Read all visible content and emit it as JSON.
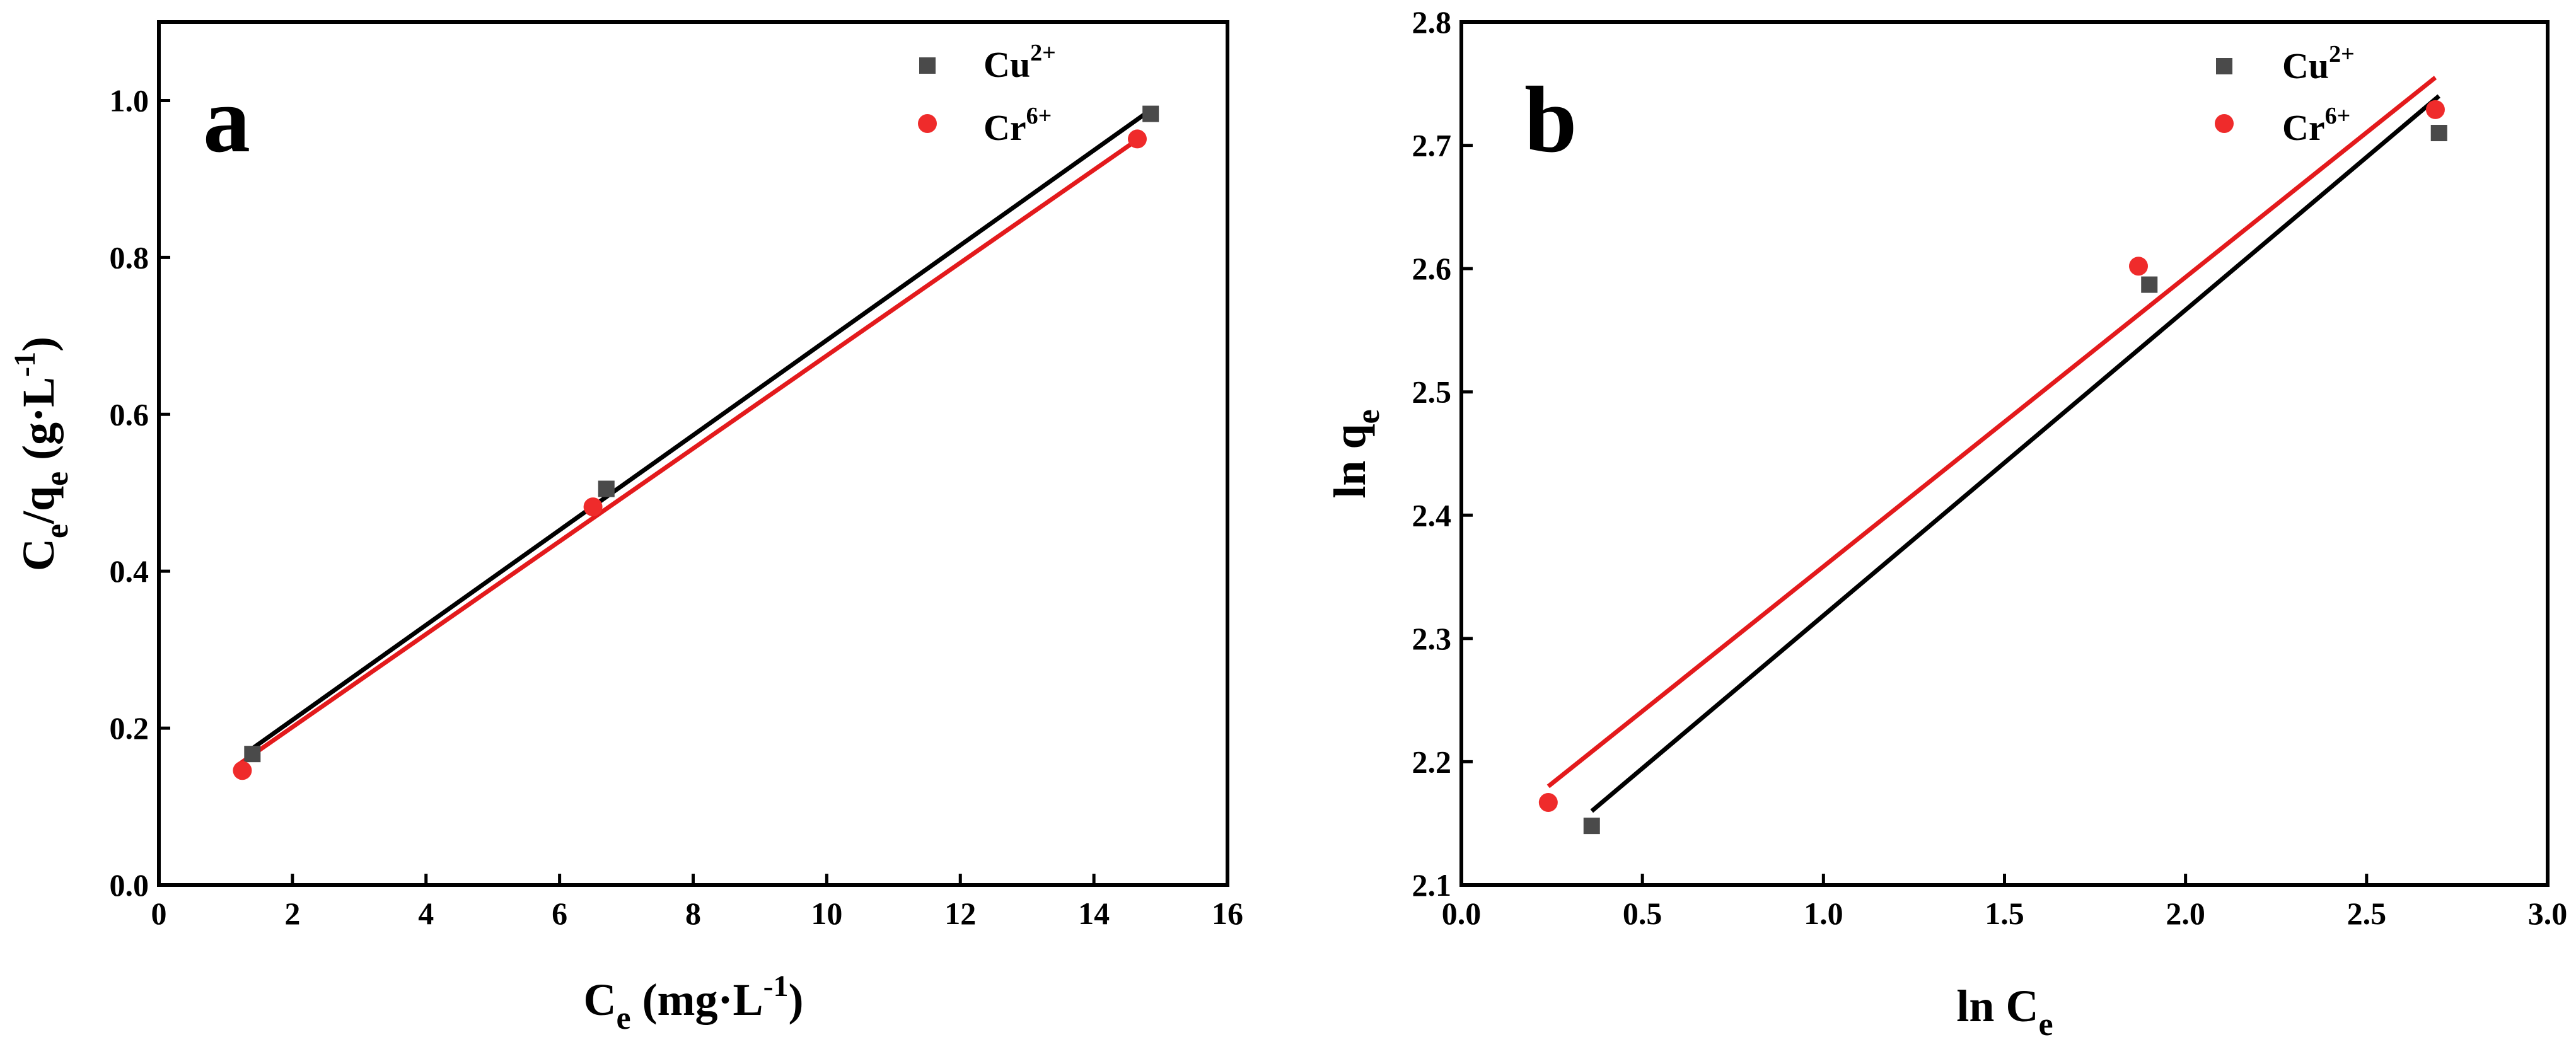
{
  "chart_data": [
    {
      "type": "scatter",
      "panel_label": "a",
      "ylabel": {
        "base": "C",
        "sub1": "e",
        "mid": "/q",
        "sub2": "e",
        "tail": " (g·L",
        "sup": "-1",
        "close": ")"
      },
      "xlabel": {
        "base": "C",
        "sub": "e",
        "tail": " (mg·L",
        "sup": "-1",
        "close": ")"
      },
      "xlim": [
        0,
        16
      ],
      "ylim": [
        0.0,
        1.1
      ],
      "xticks": [
        "0",
        "2",
        "4",
        "6",
        "8",
        "10",
        "12",
        "14",
        "16"
      ],
      "yticks": [
        "0.0",
        "0.2",
        "0.4",
        "0.6",
        "0.8",
        "1.0"
      ],
      "legend_position": "top-right",
      "series": [
        {
          "name": "Cu",
          "sup": "2+",
          "marker": "square",
          "marker_color": "#4a4a4a",
          "line_color": "#000000",
          "points": [
            {
              "x": 1.4,
              "y": 0.167
            },
            {
              "x": 6.7,
              "y": 0.505
            },
            {
              "x": 14.85,
              "y": 0.983
            }
          ],
          "fit": [
            {
              "x": 1.3,
              "y": 0.168
            },
            {
              "x": 14.85,
              "y": 0.988
            }
          ]
        },
        {
          "name": "Cr",
          "sup": "6+",
          "marker": "circle",
          "marker_color": "#ef2b2b",
          "line_color": "#e31a1c",
          "points": [
            {
              "x": 1.25,
              "y": 0.146
            },
            {
              "x": 6.5,
              "y": 0.482
            },
            {
              "x": 14.65,
              "y": 0.951
            }
          ],
          "fit": [
            {
              "x": 1.2,
              "y": 0.154
            },
            {
              "x": 14.7,
              "y": 0.953
            }
          ]
        }
      ]
    },
    {
      "type": "scatter",
      "panel_label": "b",
      "ylabel": {
        "base": "ln q",
        "sub": "e"
      },
      "xlabel": {
        "base": "ln C",
        "sub": "e"
      },
      "xlim": [
        0.0,
        3.0
      ],
      "ylim": [
        2.1,
        2.8
      ],
      "xticks": [
        "0.0",
        "0.5",
        "1.0",
        "1.5",
        "2.0",
        "2.5",
        "3.0"
      ],
      "yticks": [
        "2.1",
        "2.2",
        "2.3",
        "2.4",
        "2.5",
        "2.6",
        "2.7",
        "2.8"
      ],
      "legend_position": "top-right",
      "series": [
        {
          "name": "Cu",
          "sup": "2+",
          "marker": "square",
          "marker_color": "#4a4a4a",
          "line_color": "#000000",
          "points": [
            {
              "x": 0.36,
              "y": 2.148
            },
            {
              "x": 1.9,
              "y": 2.587
            },
            {
              "x": 2.7,
              "y": 2.71
            }
          ],
          "fit": [
            {
              "x": 0.36,
              "y": 2.16
            },
            {
              "x": 2.7,
              "y": 2.74
            }
          ]
        },
        {
          "name": "Cr",
          "sup": "6+",
          "marker": "circle",
          "marker_color": "#ef2b2b",
          "line_color": "#e31a1c",
          "points": [
            {
              "x": 0.24,
              "y": 2.167
            },
            {
              "x": 1.87,
              "y": 2.602
            },
            {
              "x": 2.69,
              "y": 2.729
            }
          ],
          "fit": [
            {
              "x": 0.24,
              "y": 2.18
            },
            {
              "x": 2.69,
              "y": 2.755
            }
          ]
        }
      ]
    }
  ]
}
